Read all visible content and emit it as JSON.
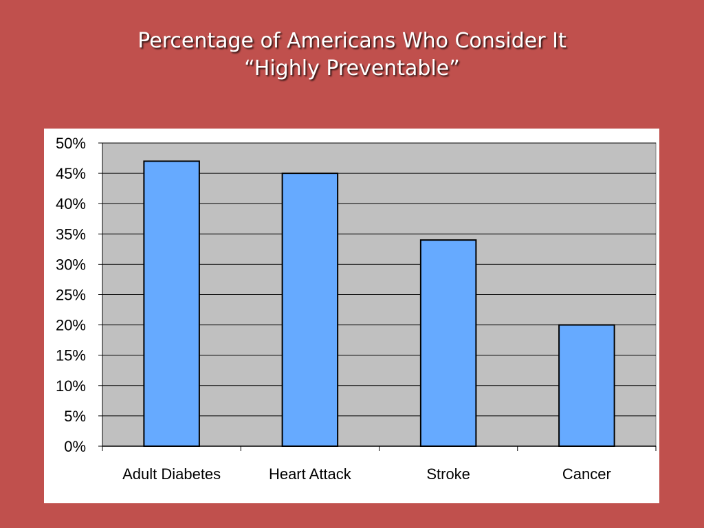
{
  "slide": {
    "background": "#c0504d",
    "title_line1": "Percentage of Americans Who Consider It",
    "title_line2": "“Highly Preventable”"
  },
  "chart_data": {
    "type": "bar",
    "categories": [
      "Adult Diabetes",
      "Heart Attack",
      "Stroke",
      "Cancer"
    ],
    "values": [
      47,
      45,
      34,
      20
    ],
    "ylim": [
      0,
      50
    ],
    "yticks": [
      0,
      5,
      10,
      15,
      20,
      25,
      30,
      35,
      40,
      45,
      50
    ],
    "ytick_format": "%",
    "grid": true,
    "legend": "none",
    "bar_color": "#66aaff",
    "plot_background": "#c0c0c0",
    "xlabel": "",
    "ylabel": ""
  }
}
